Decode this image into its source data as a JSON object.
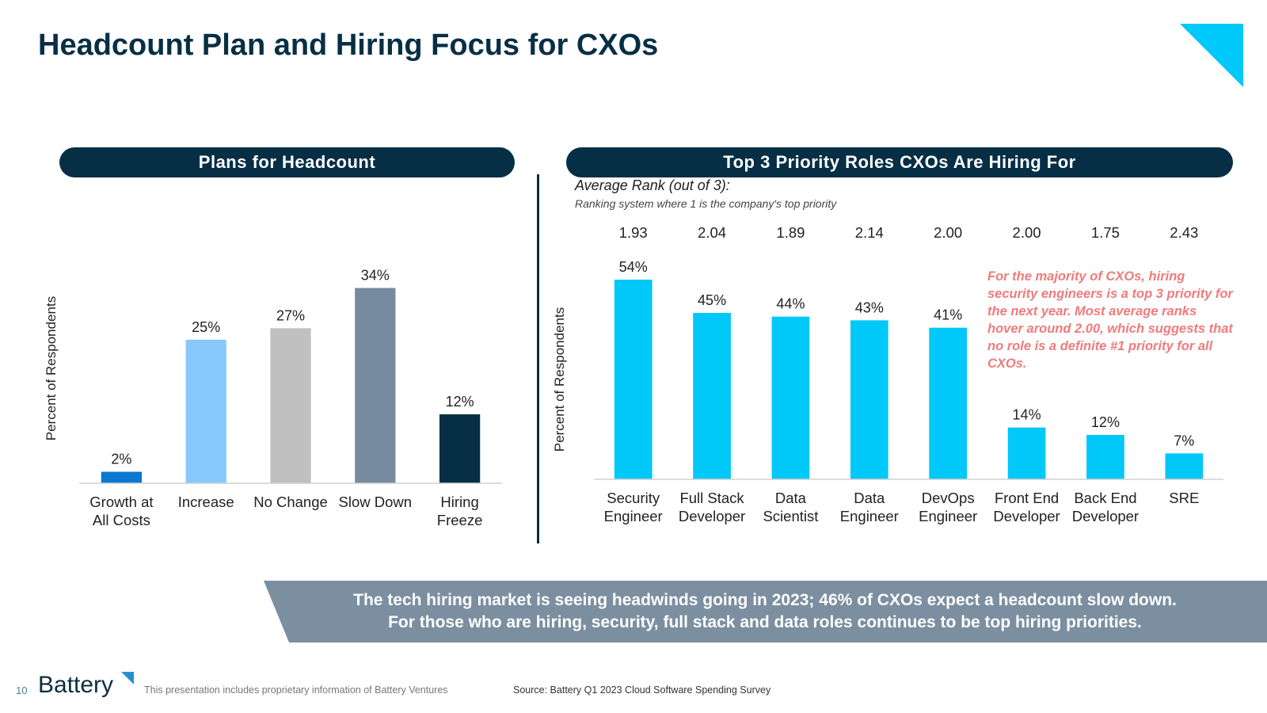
{
  "title": "Headcount Plan and Hiring Focus for CXOs",
  "colors": {
    "navy": "#062f45",
    "cyan": "#00c8f8",
    "banner": "#7b8fa0",
    "note": "#f07b7b"
  },
  "left_panel": {
    "heading": "Plans for Headcount"
  },
  "right_panel": {
    "heading": "Top 3 Priority Roles CXOs Are Hiring For",
    "avg_title": "Average Rank (out of 3):",
    "avg_subtitle": "Ranking system where 1 is the company's top priority",
    "note": "For the majority of CXOs, hiring security engineers is a top 3 priority for the next year. Most average ranks hover around 2.00, which suggests that no role is a definite #1 priority for all CXOs."
  },
  "chart_data": [
    {
      "type": "bar",
      "title": "Plans for Headcount",
      "ylabel": "Percent of Respondents",
      "xlabel": "",
      "categories": [
        [
          "Growth at",
          "All Costs"
        ],
        [
          "Increase"
        ],
        [
          "No Change"
        ],
        [
          "Slow Down"
        ],
        [
          "Hiring",
          "Freeze"
        ]
      ],
      "values": [
        2,
        25,
        27,
        34,
        12
      ],
      "value_labels": [
        "2%",
        "25%",
        "27%",
        "34%",
        "12%"
      ],
      "bar_colors": [
        "#0a77d0",
        "#88c9fc",
        "#c0c0c0",
        "#768b9d",
        "#062f45"
      ],
      "ylim": [
        0,
        40
      ],
      "grid": false
    },
    {
      "type": "bar",
      "title": "Top 3 Priority Roles CXOs Are Hiring For",
      "ylabel": "Percent of Respondents",
      "xlabel": "",
      "categories": [
        [
          "Security",
          "Engineer"
        ],
        [
          "Full Stack",
          "Developer"
        ],
        [
          "Data",
          "Scientist"
        ],
        [
          "Data",
          "Engineer"
        ],
        [
          "DevOps",
          "Engineer"
        ],
        [
          "Front End",
          "Developer"
        ],
        [
          "Back End",
          "Developer"
        ],
        [
          "SRE"
        ]
      ],
      "values": [
        54,
        45,
        44,
        43,
        41,
        14,
        12,
        7
      ],
      "value_labels": [
        "54%",
        "45%",
        "44%",
        "43%",
        "41%",
        "14%",
        "12%",
        "7%"
      ],
      "average_rank": [
        "1.93",
        "2.04",
        "1.89",
        "2.14",
        "2.00",
        "2.00",
        "1.75",
        "2.43"
      ],
      "bar_color": "#00c8f8",
      "ylim": [
        0,
        54
      ],
      "grid": false
    }
  ],
  "banner": {
    "line1": "The tech hiring market is seeing headwinds going in 2023; 46% of CXOs expect a headcount slow down.",
    "line2": "For those who are hiring, security, full stack and data roles continues to be top hiring priorities."
  },
  "footer": {
    "page_number": "10",
    "logo_text": "Battery",
    "disclaimer": "This presentation includes proprietary information of Battery Ventures",
    "source": "Source: Battery Q1 2023 Cloud Software Spending Survey"
  }
}
